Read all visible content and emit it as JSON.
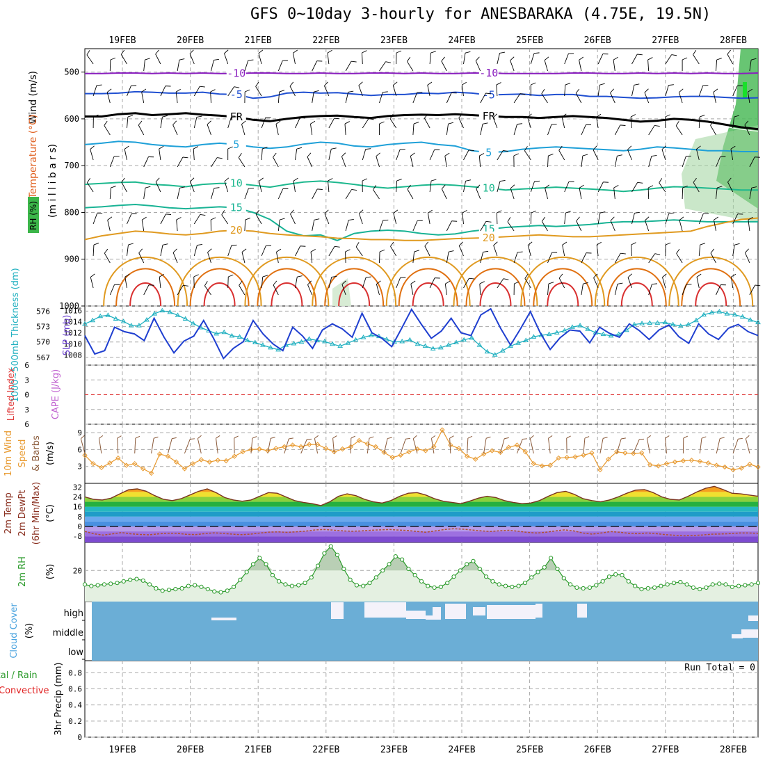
{
  "chart_data": {
    "type": "line",
    "title": "GFS 0~10day 3-hourly for ANESBARAKA (4.75E, 19.5N)",
    "x_dates": [
      "19FEB",
      "20FEB",
      "21FEB",
      "22FEB",
      "23FEB",
      "24FEB",
      "25FEB",
      "26FEB",
      "27FEB",
      "28FEB"
    ],
    "panels": [
      {
        "id": "upper-air",
        "ylabel_wind": "Wind (m/s)",
        "ylabel_temp": "Temperature (°C)",
        "ylabel_rh": "RH (%)",
        "ylabel_pressure": "(m i l l i b a r s)",
        "pressure_ticks": [
          500,
          600,
          700,
          800,
          900,
          1000
        ],
        "ylim": [
          1000,
          450
        ],
        "isotherms": [
          {
            "label": "-10",
            "value": -10,
            "color": "#8a1fbf",
            "levels": [
              503,
              503,
              502,
              502,
              503,
              502,
              503,
              502,
              503,
              503,
              502,
              502,
              503,
              503,
              502,
              503,
              503,
              502,
              502,
              503,
              502,
              503,
              503,
              502,
              502,
              503,
              503,
              503,
              503,
              502,
              502,
              503,
              503,
              502,
              503,
              502,
              503,
              502,
              503,
              503,
              502
            ]
          },
          {
            "label": "-5",
            "value": -5,
            "color": "#1f4fd1",
            "levels": [
              546,
              546,
              545,
              542,
              543,
              545,
              545,
              543,
              547,
              548,
              556,
              553,
              545,
              543,
              545,
              544,
              547,
              550,
              548,
              548,
              545,
              546,
              543,
              545,
              549,
              548,
              547,
              550,
              548,
              548,
              552,
              552,
              554,
              556,
              555,
              553,
              552,
              552,
              554,
              556,
              555
            ]
          },
          {
            "label": "FR",
            "value": 0,
            "color": "#000000",
            "levels": [
              595,
              595,
              590,
              588,
              592,
              590,
              588,
              591,
              593,
              596,
              602,
              605,
              600,
              596,
              594,
              593,
              596,
              598,
              594,
              592,
              591,
              592,
              590,
              592,
              594,
              596,
              596,
              598,
              596,
              594,
              596,
              598,
              602,
              606,
              604,
              600,
              602,
              606,
              612,
              618,
              622
            ]
          },
          {
            "label": "5",
            "value": 5,
            "color": "#1ea0d8",
            "levels": [
              655,
              652,
              648,
              650,
              655,
              658,
              660,
              655,
              652,
              655,
              660,
              663,
              660,
              654,
              650,
              652,
              658,
              660,
              655,
              652,
              650,
              655,
              658,
              668,
              672,
              670,
              665,
              662,
              660,
              662,
              664,
              666,
              668,
              665,
              660,
              662,
              665,
              668,
              668,
              670,
              670
            ]
          },
          {
            "label": "10",
            "value": 10,
            "color": "#1db88e",
            "levels": [
              740,
              738,
              736,
              735,
              740,
              742,
              745,
              740,
              738,
              738,
              742,
              746,
              740,
              735,
              733,
              736,
              740,
              745,
              748,
              745,
              742,
              740,
              742,
              745,
              748,
              752,
              750,
              748,
              746,
              748,
              750,
              752,
              755,
              752,
              748,
              745,
              746,
              748,
              750,
              752,
              752
            ]
          },
          {
            "label": "15",
            "value": 15,
            "color": "#19b395",
            "levels": [
              790,
              788,
              785,
              783,
              786,
              790,
              792,
              790,
              788,
              790,
              800,
              815,
              840,
              850,
              848,
              860,
              845,
              840,
              838,
              840,
              845,
              848,
              846,
              840,
              836,
              832,
              830,
              828,
              830,
              828,
              826,
              822,
              820,
              820,
              818,
              816,
              818,
              820,
              820,
              820,
              820
            ]
          },
          {
            "label": "20",
            "value": 20,
            "color": "#e09a20",
            "levels": [
              858,
              850,
              845,
              840,
              842,
              846,
              848,
              845,
              840,
              838,
              840,
              845,
              848,
              850,
              852,
              855,
              856,
              858,
              858,
              860,
              860,
              858,
              856,
              855,
              854,
              852,
              850,
              848,
              850,
              852,
              852,
              850,
              848,
              846,
              844,
              842,
              840,
              830,
              822,
              815,
              812
            ]
          }
        ]
      },
      {
        "id": "thickness-slp",
        "ylabel_thickness": "1000~500mb Thickness (dm)",
        "ylabel_slp": "SLP (mb)",
        "thickness_ticks": [
          567,
          570,
          573,
          576
        ],
        "thickness_ylim": [
          565.5,
          577
        ],
        "slp_ticks": [
          1008,
          1010,
          1012,
          1014,
          1016
        ],
        "slp_ylim": [
          1006.2,
          1016.8
        ],
        "thickness": [
          573.5,
          574.2,
          575,
          575.2,
          574.5,
          574,
          573.2,
          573.2,
          574.3,
          575.5,
          576.1,
          575.8,
          575.2,
          574.5,
          573.6,
          572.8,
          572.2,
          571.6,
          571.9,
          571.2,
          571,
          570.3,
          569.9,
          569.4,
          568.9,
          568.5,
          569.4,
          569.7,
          570,
          570.6,
          570.3,
          570.1,
          569.6,
          569.2,
          569.8,
          570.4,
          570.9,
          571.3,
          571.1,
          570.5,
          570,
          570.1,
          570.4,
          569.6,
          569.2,
          568.7,
          568.9,
          569.4,
          569.9,
          570.4,
          570.8,
          569.4,
          568.1,
          567.5,
          568.3,
          569.2,
          569.8,
          570.3,
          571,
          571.3,
          571.5,
          571.8,
          572.2,
          572.9,
          573.2,
          572.5,
          571.8,
          571.5,
          571.2,
          571.5,
          572.3,
          573.4,
          573.6,
          573.7,
          573.7,
          573.8,
          573.4,
          573.1,
          573.4,
          574.2,
          575.3,
          575.7,
          575.9,
          575.5,
          575.3,
          574.9,
          574.3,
          573.8
        ],
        "slp": [
          1011.5,
          1008.2,
          1008.8,
          1013,
          1012.2,
          1011.8,
          1010.6,
          1014.6,
          1011.2,
          1008.4,
          1010.5,
          1011.4,
          1014.2,
          1011,
          1007.4,
          1009.2,
          1010.4,
          1014.2,
          1011.8,
          1010,
          1008.8,
          1013,
          1011.4,
          1009.2,
          1012.5,
          1013.6,
          1012.7,
          1011.2,
          1015.5,
          1012,
          1011,
          1009.5,
          1012.8,
          1016.2,
          1013.5,
          1011,
          1012.3,
          1014.6,
          1012,
          1011.5,
          1015.2,
          1016.3,
          1012.8,
          1009.8,
          1012.7,
          1015.8,
          1012,
          1009,
          1011.1,
          1012.5,
          1012.3,
          1010.2,
          1013,
          1011.9,
          1011.2,
          1013.6,
          1012.4,
          1010.8,
          1012.5,
          1013.4,
          1011.3,
          1010.1,
          1013.6,
          1011.8,
          1010.8,
          1012.8,
          1013.5,
          1012.2,
          1011.5
        ]
      },
      {
        "id": "lifted-cape",
        "ylabel_li": "Lifted Index",
        "ylabel_cape": "CAPE (J/kg)",
        "ticks": [
          6,
          3,
          0,
          -3,
          -6
        ],
        "tick_labels": [
          "6",
          "3",
          "0",
          "3",
          "6"
        ],
        "ylim": [
          -6,
          6
        ]
      },
      {
        "id": "wind10m",
        "ylabel": "10m Wind Speed & Barbs (m/s)",
        "ylabel_a": "10m Wind",
        "ylabel_b": "Speed",
        "ylabel_c": "& Barbs",
        "ylabel_d": "(m/s)",
        "ticks": [
          3,
          6,
          9
        ],
        "ylim": [
          0,
          10.5
        ],
        "speed": [
          5,
          3.5,
          2.8,
          3.6,
          4.5,
          3.2,
          3.5,
          2.6,
          1.8,
          5.2,
          4.8,
          3.8,
          2.6,
          3.5,
          4.2,
          3.8,
          4.1,
          4,
          4.8,
          5.6,
          6,
          6.1,
          5.8,
          6.2,
          6.5,
          6.8,
          6.5,
          6.9,
          6.9,
          6.2,
          5.6,
          6.1,
          6.5,
          7.6,
          7,
          6.5,
          5.5,
          4.6,
          5,
          5.6,
          6.1,
          5.8,
          6.5,
          9.5,
          6.8,
          6.2,
          4.8,
          4.3,
          5.2,
          5.8,
          5.5,
          6.4,
          6.8,
          5.6,
          3.5,
          3.1,
          3.2,
          4.5,
          4.6,
          4.7,
          5,
          5.4,
          2.4,
          4.3,
          5.6,
          5.4,
          5.3,
          5.4,
          3.3,
          3.1,
          3.5,
          3.8,
          4,
          4.1,
          3.9,
          3.6,
          3.2,
          2.9,
          2.4,
          2.7,
          3.4,
          2.9
        ]
      },
      {
        "id": "temp2m",
        "ylabel_a": "2m Temp",
        "ylabel_b": "2m DewPt",
        "ylabel_c": "(6hr Min/Max)",
        "ylabel_d": "(°C)",
        "ticks": [
          32,
          24,
          16,
          8,
          0,
          -8
        ],
        "ylim": [
          -13,
          35
        ],
        "temp": [
          24,
          22,
          21.5,
          23,
          26.5,
          29.8,
          30.5,
          28.6,
          25,
          22,
          21,
          22.5,
          25.5,
          28.5,
          30.5,
          27.5,
          23.5,
          21.5,
          20.5,
          21.5,
          24.5,
          27.5,
          27,
          24,
          21,
          19.5,
          18.5,
          17,
          20,
          24.5,
          26.5,
          25,
          22,
          20,
          19,
          21,
          24.5,
          27,
          27.5,
          25.5,
          22.5,
          20.5,
          19.5,
          18.5,
          20.5,
          23,
          24.5,
          23.5,
          21,
          19.5,
          18.5,
          19,
          21,
          24.5,
          27.5,
          28.5,
          26,
          22.5,
          21,
          20,
          21.5,
          24,
          27,
          29.5,
          30,
          27.5,
          24,
          22,
          21.5,
          24.5,
          28,
          31,
          32.5,
          30,
          27,
          26.5,
          25.5,
          24.5
        ],
        "dewpoint": [
          -4,
          -6,
          -7,
          -6,
          -5,
          -6,
          -6.5,
          -6.8,
          -6,
          -5.5,
          -5.6,
          -6.4,
          -6.6,
          -5.8,
          -5.2,
          -5.6,
          -6.3,
          -6.7,
          -6.2,
          -5.3,
          -4.6,
          -4.4,
          -4.8,
          -4.3,
          -3.8,
          -2.8,
          -2.5,
          -3,
          -3.6,
          -3.9,
          -3.6,
          -3.1,
          -2.8,
          -2.5,
          -2.9,
          -3.3,
          -4.1,
          -4.7,
          -3.6,
          -2.5,
          -1.8,
          -2.2,
          -2.9,
          -3.6,
          -4.1,
          -3.5,
          -3.1,
          -3.9,
          -4.8,
          -5.3,
          -4.7,
          -3.6,
          -2.8,
          -3.6,
          -5.3,
          -6.2,
          -5.3,
          -4.2,
          -4.7,
          -5.6,
          -5.9,
          -5.3,
          -5.9,
          -6.7,
          -7.2,
          -7.6,
          -7.3,
          -6.9,
          -6.3,
          -6.1,
          -5.8,
          -5.3,
          -5.3,
          -5.6
        ]
      },
      {
        "id": "rh2m",
        "ylabel_a": "2m RH",
        "ylabel_b": "(%)",
        "ticks": [
          20
        ],
        "ylim": [
          0,
          38
        ],
        "rh": [
          11,
          10,
          10.5,
          11,
          11.5,
          12,
          13,
          14,
          14.5,
          13.5,
          11,
          8.5,
          7,
          7.5,
          8,
          8.5,
          10,
          10.5,
          9.5,
          8,
          6.5,
          6,
          7,
          9.5,
          14,
          19,
          24,
          28,
          24,
          17,
          13,
          11,
          10,
          10.5,
          12,
          15.5,
          23,
          31,
          35.5,
          30,
          21,
          14,
          10.5,
          10,
          12,
          15.5,
          20,
          24,
          29,
          27,
          21,
          17,
          13,
          10,
          9,
          9.5,
          12,
          16,
          20,
          24,
          26,
          21,
          16,
          13,
          11,
          10,
          9.5,
          10,
          12,
          15.5,
          19,
          22,
          28,
          21,
          15,
          11,
          9,
          8.5,
          9,
          10.5,
          13,
          16,
          17.5,
          17,
          13,
          10,
          8,
          8.5,
          9,
          10,
          11,
          12,
          12.5,
          11,
          9,
          8,
          9,
          11,
          11.5,
          11,
          9.5,
          10,
          10.5,
          11,
          12
        ]
      },
      {
        "id": "cloud",
        "ylabel_a": "Cloud Cover",
        "ylabel_b": "(%)",
        "level_labels": [
          "high",
          "middle",
          "low"
        ]
      },
      {
        "id": "precip",
        "ylabel_a": "Total / Rain",
        "ylabel_b": "Convective",
        "ylabel_c": "3hr Precip (mm)",
        "ticks": [
          0,
          0.2,
          0.4,
          0.6,
          0.8
        ],
        "ylim": [
          0,
          0.95
        ],
        "run_total": "Run Total = 0"
      }
    ]
  }
}
